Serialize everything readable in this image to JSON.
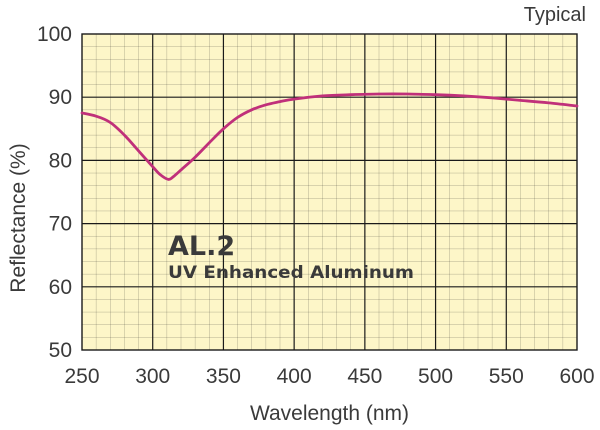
{
  "chart_data": {
    "type": "line",
    "corner_note": "Typical",
    "xlabel": "Wavelength (nm)",
    "ylabel": "Reflectance (%)",
    "xlim": [
      250,
      600
    ],
    "ylim": [
      50,
      100
    ],
    "xticks": [
      "250",
      "300",
      "350",
      "400",
      "450",
      "500",
      "550",
      "600"
    ],
    "yticks": [
      "50",
      "60",
      "70",
      "80",
      "90",
      "100"
    ],
    "grid": true,
    "annotation": {
      "title": "AL.2",
      "subtitle": "UV Enhanced Aluminum"
    },
    "series": [
      {
        "x": [
          250,
          260,
          270,
          280,
          290,
          300,
          305,
          311,
          315,
          320,
          330,
          340,
          350,
          360,
          370,
          380,
          390,
          400,
          420,
          440,
          460,
          480,
          500,
          520,
          540,
          560,
          580,
          600
        ],
        "y": [
          87.5,
          87.0,
          86.0,
          84.0,
          81.5,
          79.0,
          77.8,
          77.0,
          77.5,
          78.5,
          80.5,
          82.8,
          85.0,
          86.8,
          88.0,
          88.8,
          89.3,
          89.7,
          90.2,
          90.4,
          90.5,
          90.5,
          90.4,
          90.2,
          89.9,
          89.5,
          89.1,
          88.6
        ]
      }
    ],
    "colors": {
      "plot_background": "#fdf6c8",
      "grid": "#1a1a1a",
      "line": "#c0307a",
      "text": "#3a3a3a"
    }
  }
}
